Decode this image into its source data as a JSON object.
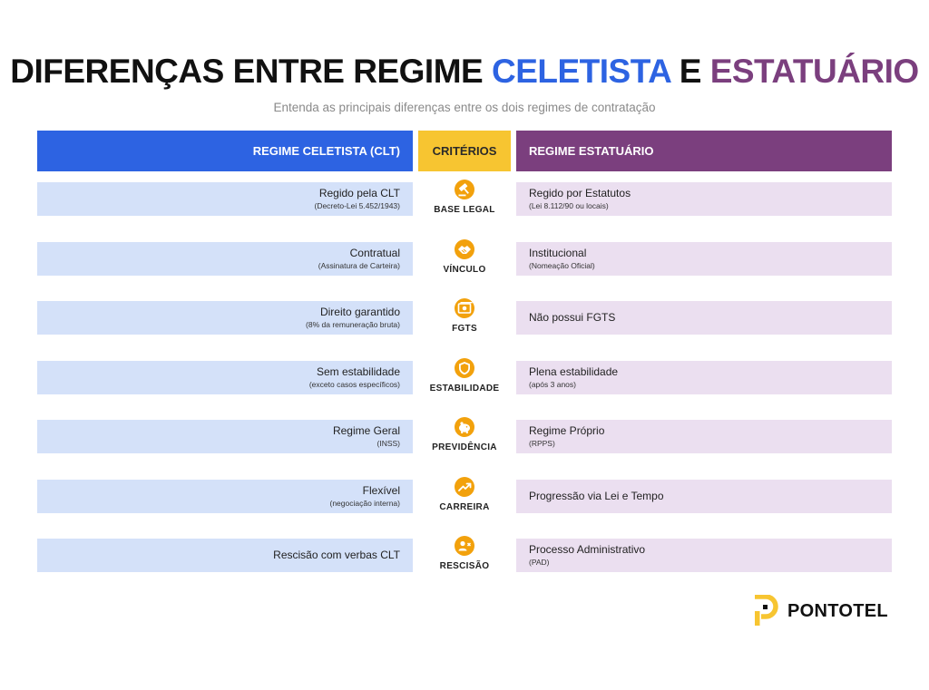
{
  "title": {
    "part1": "DIFERENÇAS ENTRE REGIME ",
    "part2": "CELETISTA",
    "part3": " E ",
    "part4": "ESTATUÁRIO"
  },
  "subtitle": "Entenda as principais diferenças entre os dois regimes de contratação",
  "headers": {
    "clt": "REGIME CELETISTA (CLT)",
    "criterios": "CRITÉRIOS",
    "estatutario": "REGIME ESTATUÁRIO"
  },
  "colors": {
    "blue": "#2d63e2",
    "purple": "#7b3f7e",
    "yellow": "#f7c531",
    "orange": "#f2a10c",
    "light_blue": "#d4e1f9",
    "light_purple": "#ebdff0"
  },
  "rows": [
    {
      "criterio": "BASE LEGAL",
      "icon": "gavel-icon",
      "clt_main": "Regido pela CLT",
      "clt_sub": "(Decreto-Lei 5.452/1943)",
      "est_main": "Regido por Estatutos",
      "est_sub": "(Lei 8.112/90 ou locais)"
    },
    {
      "criterio": "VÍNCULO",
      "icon": "handshake-icon",
      "clt_main": "Contratual",
      "clt_sub": "(Assinatura de Carteira)",
      "est_main": "Institucional",
      "est_sub": "(Nomeação Oficial)"
    },
    {
      "criterio": "FGTS",
      "icon": "money-icon",
      "clt_main": "Direito garantido",
      "clt_sub": "(8% da remuneração bruta)",
      "est_main": "Não possui FGTS",
      "est_sub": ""
    },
    {
      "criterio": "ESTABILIDADE",
      "icon": "shield-icon",
      "clt_main": "Sem estabilidade",
      "clt_sub": "(exceto casos específicos)",
      "est_main": "Plena estabilidade",
      "est_sub": "(após 3 anos)"
    },
    {
      "criterio": "PREVIDÊNCIA",
      "icon": "piggy-bank-icon",
      "clt_main": "Regime Geral",
      "clt_sub": "(INSS)",
      "est_main": "Regime Próprio",
      "est_sub": "(RPPS)"
    },
    {
      "criterio": "CARREIRA",
      "icon": "trending-up-icon",
      "clt_main": "Flexível",
      "clt_sub": "(negociação interna)",
      "est_main": "Progressão via Lei e Tempo",
      "est_sub": ""
    },
    {
      "criterio": "RESCISÃO",
      "icon": "person-remove-icon",
      "clt_main": "Rescisão com verbas CLT",
      "clt_sub": "",
      "est_main": "Processo Administrativo",
      "est_sub": "(PAD)"
    }
  ],
  "logo": {
    "text": "PONTOTEL"
  }
}
